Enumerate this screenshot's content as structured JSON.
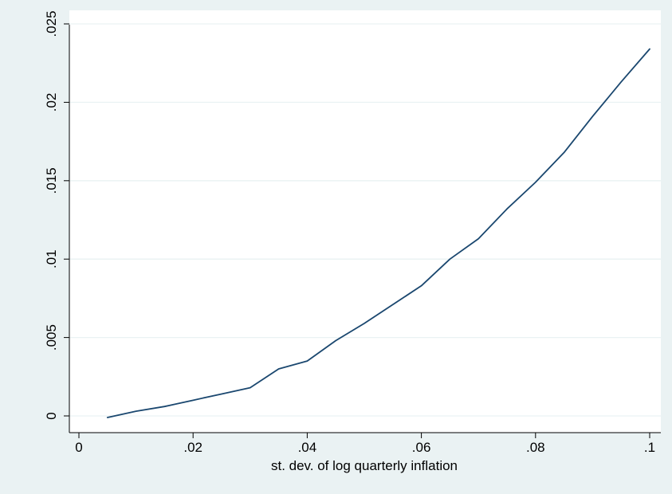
{
  "colors": {
    "outer_background": "#eaf2f3",
    "plot_background": "#ffffff",
    "gridline": "#eaf2f3",
    "axis": "#000000",
    "series_line": "#1a476f"
  },
  "chart_data": {
    "type": "line",
    "title": "",
    "xlabel": "st. dev. of log quarterly inflation",
    "ylabel": "",
    "xlim": [
      0,
      0.1
    ],
    "ylim": [
      0,
      0.025
    ],
    "grid": true,
    "legend": "none",
    "x_ticks": [
      0,
      0.02,
      0.04,
      0.06,
      0.08,
      0.1
    ],
    "x_tick_labels": [
      "0",
      ".02",
      ".04",
      ".06",
      ".08",
      ".1"
    ],
    "y_ticks": [
      0,
      0.005,
      0.01,
      0.015,
      0.02,
      0.025
    ],
    "y_tick_labels": [
      "0",
      ".005",
      ".01",
      ".015",
      ".02",
      ".025"
    ],
    "series": [
      {
        "x": [
          0.005,
          0.01,
          0.015,
          0.02,
          0.025,
          0.03,
          0.035,
          0.04,
          0.045,
          0.05,
          0.055,
          0.06,
          0.065,
          0.07,
          0.075,
          0.08,
          0.085,
          0.09,
          0.095,
          0.1
        ],
        "y": [
          -0.0001,
          0.0003,
          0.0006,
          0.001,
          0.0014,
          0.0018,
          0.003,
          0.0035,
          0.0048,
          0.0059,
          0.0071,
          0.0083,
          0.01,
          0.0113,
          0.0132,
          0.0149,
          0.0168,
          0.0191,
          0.0213,
          0.0234
        ]
      }
    ]
  }
}
